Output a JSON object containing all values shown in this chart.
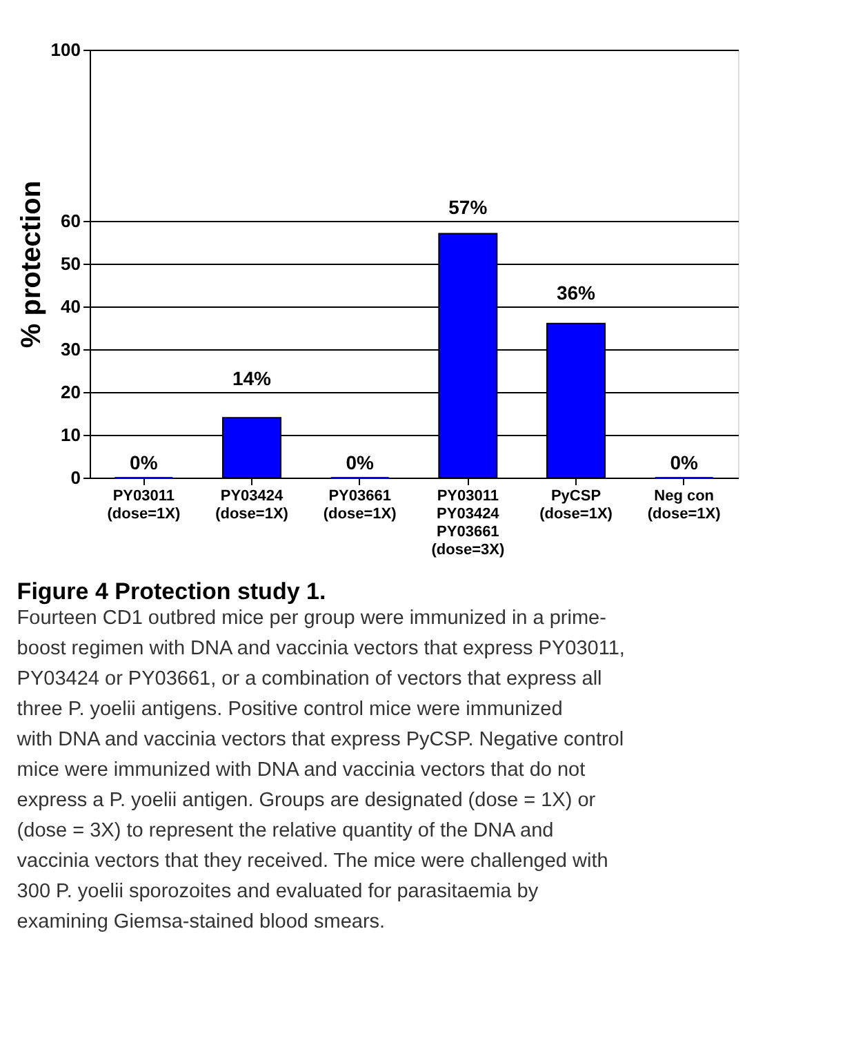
{
  "chart_data": {
    "type": "bar",
    "title": "Figure 4 Protection study 1.",
    "ylabel": "% protection",
    "categories": [
      "PY03011\n(dose=1X)",
      "PY03424\n(dose=1X)",
      "PY03661\n(dose=1X)",
      "PY03011\nPY03424\nPY03661\n(dose=3X)",
      "PyCSP\n(dose=1X)",
      "Neg con\n(dose=1X)"
    ],
    "values": [
      0,
      14,
      0,
      57,
      36,
      0
    ],
    "value_labels": [
      "0%",
      "14%",
      "0%",
      "57%",
      "36%",
      "0%"
    ],
    "color": "#0000ff",
    "ylim": [
      0,
      100
    ],
    "yticks": [
      0,
      10,
      20,
      30,
      40,
      50,
      60,
      100
    ],
    "grid": "y",
    "annotations": [
      "Fourteen CD1 outbred mice per group were immunized in a prime-boost regimen with DNA and vaccinia vectors that express PY03011, PY03424 or PY03661, or a combination of vectors that express all three P. yoelii antigens. Positive control mice were immunized with DNA and vaccinia vectors that express PyCSP. Negative control mice were immunized with DNA and vaccinia vectors that do not express a P. yoelii antigen. Groups are designated (dose = 1X) or (dose = 3X) to represent the relative quantity of the DNA and vaccinia vectors that they received. The mice were challenged with 300 P. yoelii sporozoites and evaluated for parasitaemia by examining Giemsa-stained blood smears."
    ]
  }
}
